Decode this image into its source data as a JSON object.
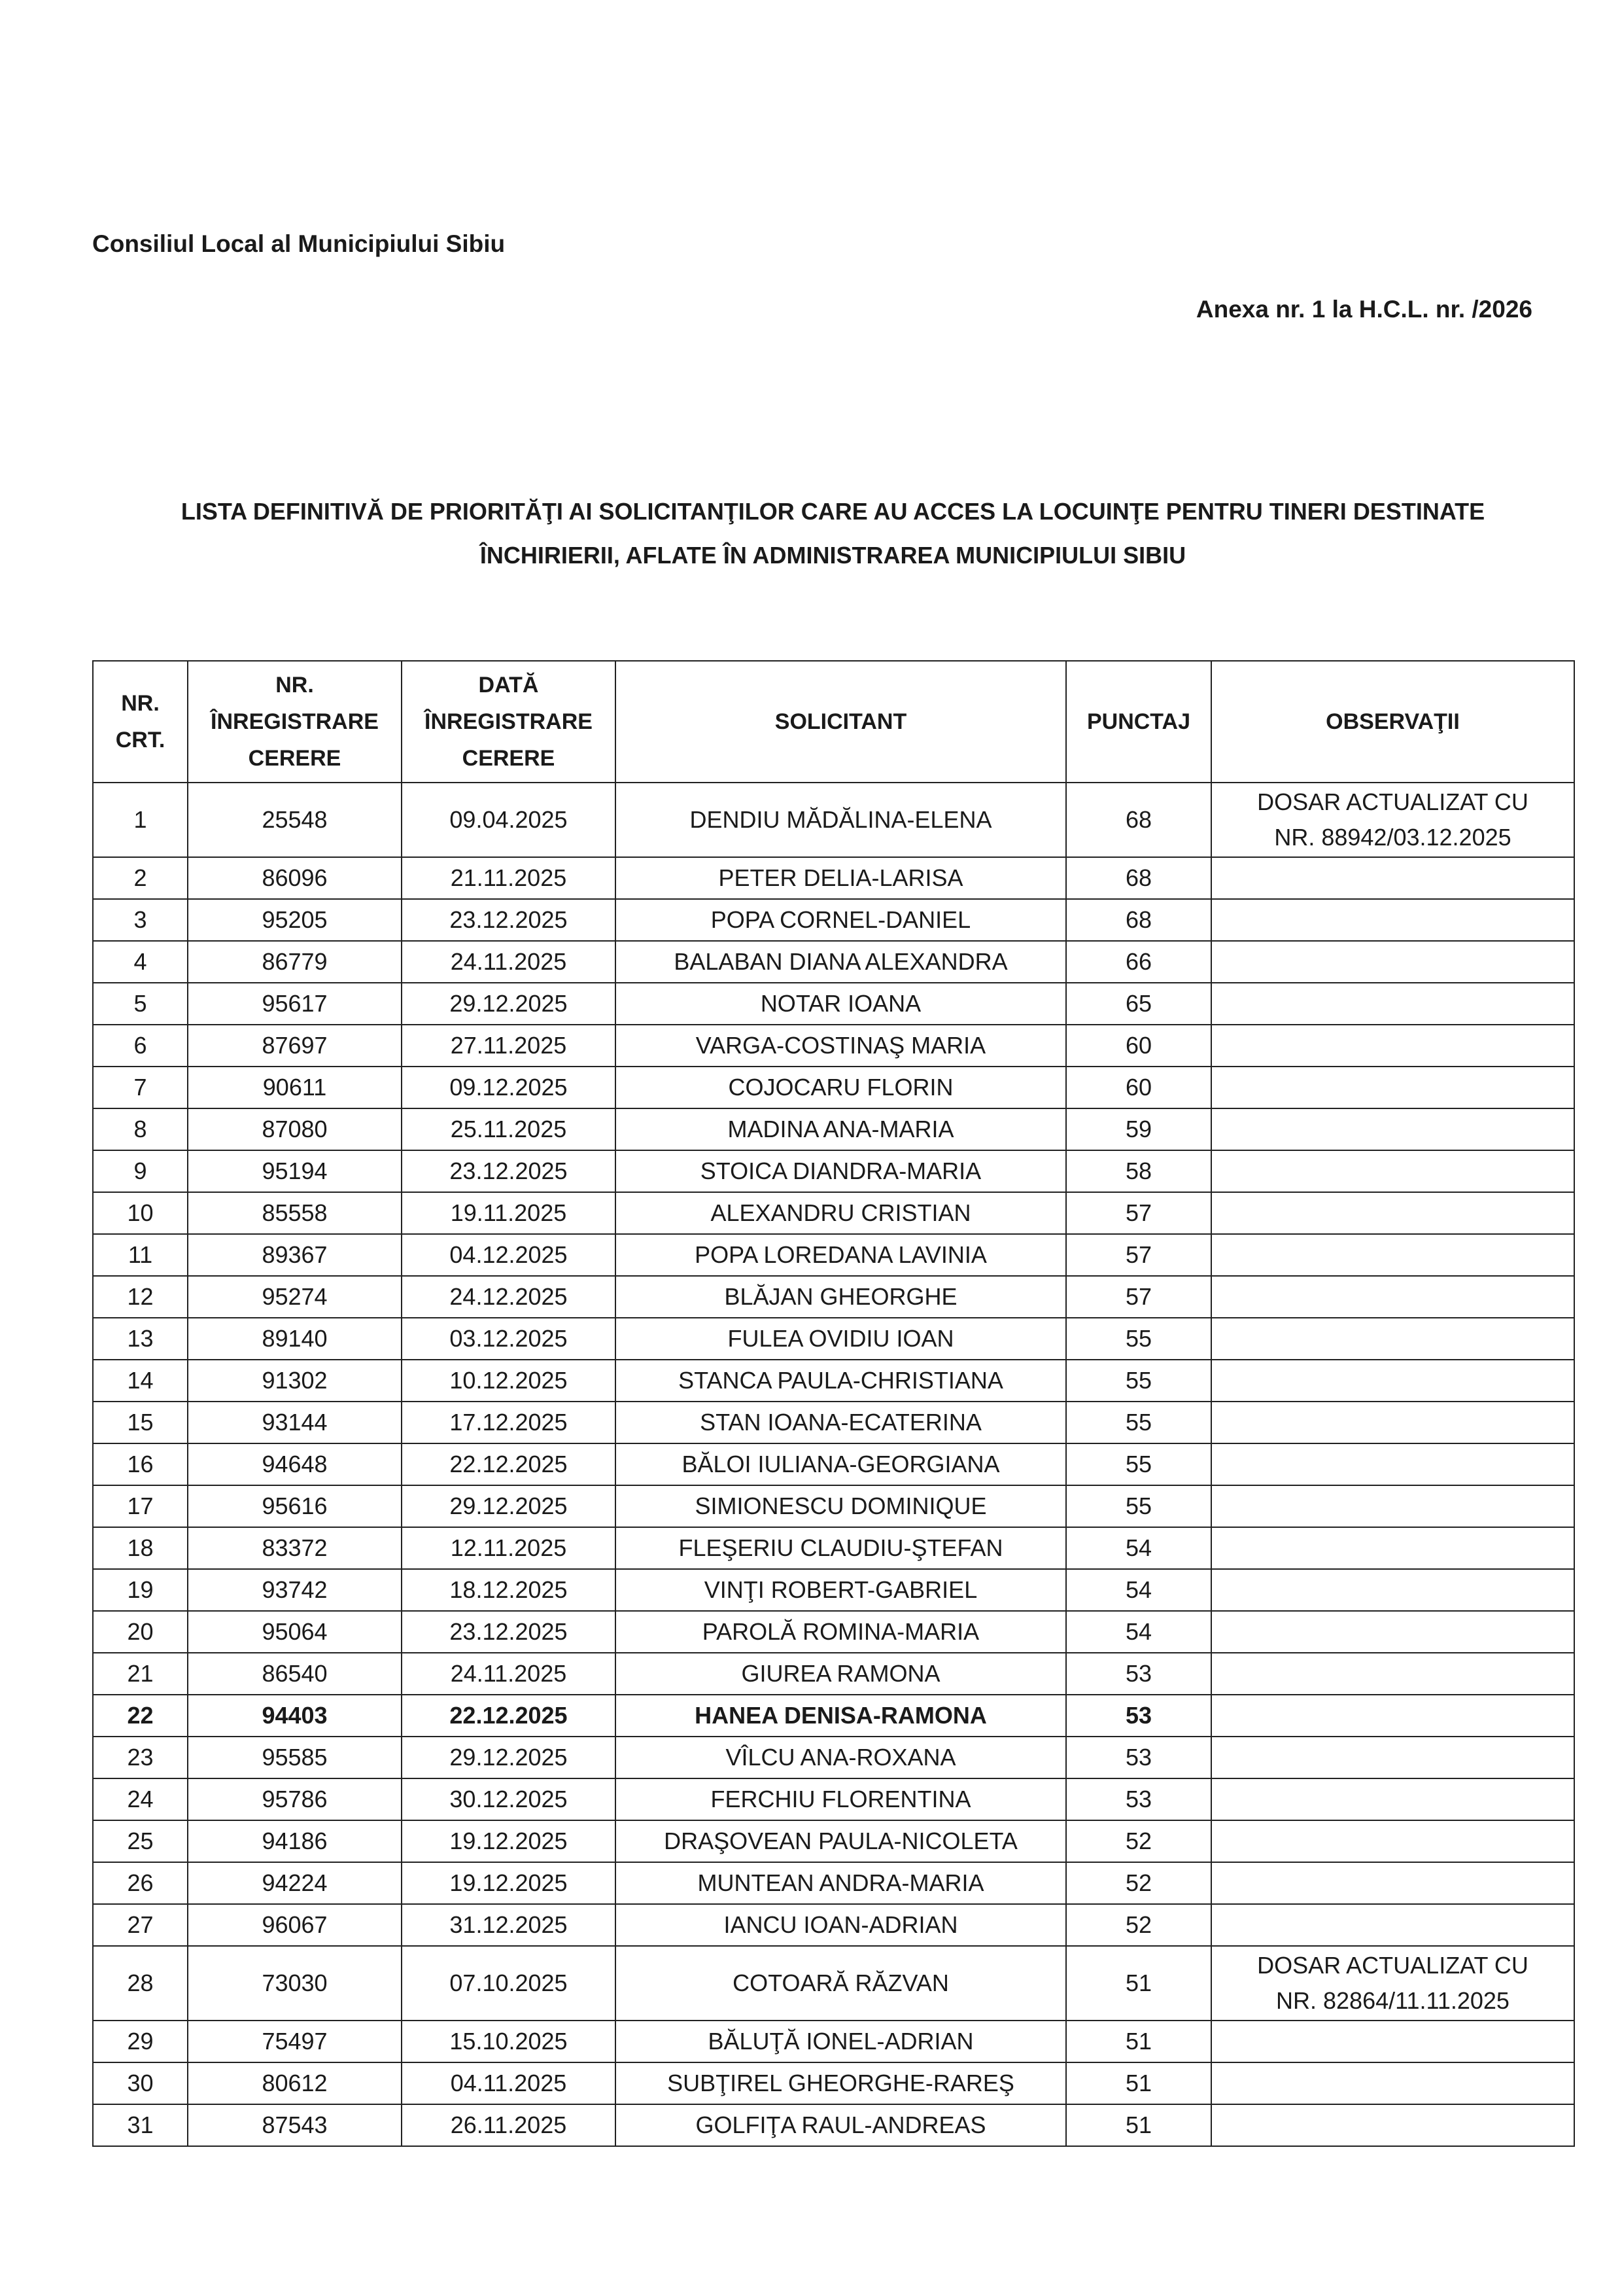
{
  "header": {
    "council": "Consiliul Local al Municipiului Sibiu",
    "annex": "Anexa nr. 1 la H.C.L. nr.   /2026"
  },
  "title": {
    "line1": "LISTA DEFINITIVĂ DE PRIORITĂŢI AI SOLICITANŢILOR CARE AU ACCES LA LOCUINŢE PENTRU TINERI DESTINATE",
    "line2": "ÎNCHIRIERII, AFLATE ÎN ADMINISTRAREA MUNICIPIULUI SIBIU"
  },
  "table": {
    "columns": [
      [
        "NR.",
        "CRT."
      ],
      [
        "NR.",
        "ÎNREGISTRARE",
        "CERERE"
      ],
      [
        "DATĂ",
        "ÎNREGISTRARE",
        "CERERE"
      ],
      [
        "SOLICITANT"
      ],
      [
        "PUNCTAJ"
      ],
      [
        "OBSERVAŢII"
      ]
    ],
    "rows": [
      {
        "nr": "1",
        "reg": "25548",
        "date": "09.04.2025",
        "name": "DENDIU MĂDĂLINA-ELENA",
        "score": "68",
        "obs": [
          "DOSAR ACTUALIZAT CU",
          "NR. 88942/03.12.2025"
        ]
      },
      {
        "nr": "2",
        "reg": "86096",
        "date": "21.11.2025",
        "name": "PETER DELIA-LARISA",
        "score": "68",
        "obs": []
      },
      {
        "nr": "3",
        "reg": "95205",
        "date": "23.12.2025",
        "name": "POPA CORNEL-DANIEL",
        "score": "68",
        "obs": []
      },
      {
        "nr": "4",
        "reg": "86779",
        "date": "24.11.2025",
        "name": "BALABAN DIANA ALEXANDRA",
        "score": "66",
        "obs": []
      },
      {
        "nr": "5",
        "reg": "95617",
        "date": "29.12.2025",
        "name": "NOTAR IOANA",
        "score": "65",
        "obs": []
      },
      {
        "nr": "6",
        "reg": "87697",
        "date": "27.11.2025",
        "name": "VARGA-COSTINAŞ MARIA",
        "score": "60",
        "obs": []
      },
      {
        "nr": "7",
        "reg": "90611",
        "date": "09.12.2025",
        "name": "COJOCARU FLORIN",
        "score": "60",
        "obs": []
      },
      {
        "nr": "8",
        "reg": "87080",
        "date": "25.11.2025",
        "name": "MADINA ANA-MARIA",
        "score": "59",
        "obs": []
      },
      {
        "nr": "9",
        "reg": "95194",
        "date": "23.12.2025",
        "name": "STOICA DIANDRA-MARIA",
        "score": "58",
        "obs": []
      },
      {
        "nr": "10",
        "reg": "85558",
        "date": "19.11.2025",
        "name": "ALEXANDRU CRISTIAN",
        "score": "57",
        "obs": []
      },
      {
        "nr": "11",
        "reg": "89367",
        "date": "04.12.2025",
        "name": "POPA LOREDANA LAVINIA",
        "score": "57",
        "obs": []
      },
      {
        "nr": "12",
        "reg": "95274",
        "date": "24.12.2025",
        "name": "BLĂJAN GHEORGHE",
        "score": "57",
        "obs": []
      },
      {
        "nr": "13",
        "reg": "89140",
        "date": "03.12.2025",
        "name": "FULEA OVIDIU IOAN",
        "score": "55",
        "obs": []
      },
      {
        "nr": "14",
        "reg": "91302",
        "date": "10.12.2025",
        "name": "STANCA PAULA-CHRISTIANA",
        "score": "55",
        "obs": []
      },
      {
        "nr": "15",
        "reg": "93144",
        "date": "17.12.2025",
        "name": "STAN IOANA-ECATERINA",
        "score": "55",
        "obs": []
      },
      {
        "nr": "16",
        "reg": "94648",
        "date": "22.12.2025",
        "name": "BĂLOI IULIANA-GEORGIANA",
        "score": "55",
        "obs": []
      },
      {
        "nr": "17",
        "reg": "95616",
        "date": "29.12.2025",
        "name": "SIMIONESCU DOMINIQUE",
        "score": "55",
        "obs": []
      },
      {
        "nr": "18",
        "reg": "83372",
        "date": "12.11.2025",
        "name": "FLEŞERIU CLAUDIU-ŞTEFAN",
        "score": "54",
        "obs": []
      },
      {
        "nr": "19",
        "reg": "93742",
        "date": "18.12.2025",
        "name": "VINŢI ROBERT-GABRIEL",
        "score": "54",
        "obs": []
      },
      {
        "nr": "20",
        "reg": "95064",
        "date": "23.12.2025",
        "name": "PAROLĂ ROMINA-MARIA",
        "score": "54",
        "obs": []
      },
      {
        "nr": "21",
        "reg": "86540",
        "date": "24.11.2025",
        "name": "GIUREA RAMONA",
        "score": "53",
        "obs": []
      },
      {
        "nr": "22",
        "reg": "94403",
        "date": "22.12.2025",
        "name": "HANEA DENISA-RAMONA",
        "score": "53",
        "obs": [],
        "bold": true
      },
      {
        "nr": "23",
        "reg": "95585",
        "date": "29.12.2025",
        "name": "VÎLCU ANA-ROXANA",
        "score": "53",
        "obs": []
      },
      {
        "nr": "24",
        "reg": "95786",
        "date": "30.12.2025",
        "name": "FERCHIU FLORENTINA",
        "score": "53",
        "obs": []
      },
      {
        "nr": "25",
        "reg": "94186",
        "date": "19.12.2025",
        "name": "DRAŞOVEAN PAULA-NICOLETA",
        "score": "52",
        "obs": []
      },
      {
        "nr": "26",
        "reg": "94224",
        "date": "19.12.2025",
        "name": "MUNTEAN ANDRA-MARIA",
        "score": "52",
        "obs": []
      },
      {
        "nr": "27",
        "reg": "96067",
        "date": "31.12.2025",
        "name": "IANCU IOAN-ADRIAN",
        "score": "52",
        "obs": []
      },
      {
        "nr": "28",
        "reg": "73030",
        "date": "07.10.2025",
        "name": "COTOARĂ RĂZVAN",
        "score": "51",
        "obs": [
          "DOSAR ACTUALIZAT CU",
          "NR. 82864/11.11.2025"
        ]
      },
      {
        "nr": "29",
        "reg": "75497",
        "date": "15.10.2025",
        "name": "BĂLUŢĂ IONEL-ADRIAN",
        "score": "51",
        "obs": []
      },
      {
        "nr": "30",
        "reg": "80612",
        "date": "04.11.2025",
        "name": "SUBŢIREL GHEORGHE-RAREŞ",
        "score": "51",
        "obs": []
      },
      {
        "nr": "31",
        "reg": "87543",
        "date": "26.11.2025",
        "name": "GOLFIŢA RAUL-ANDREAS",
        "score": "51",
        "obs": []
      }
    ]
  }
}
